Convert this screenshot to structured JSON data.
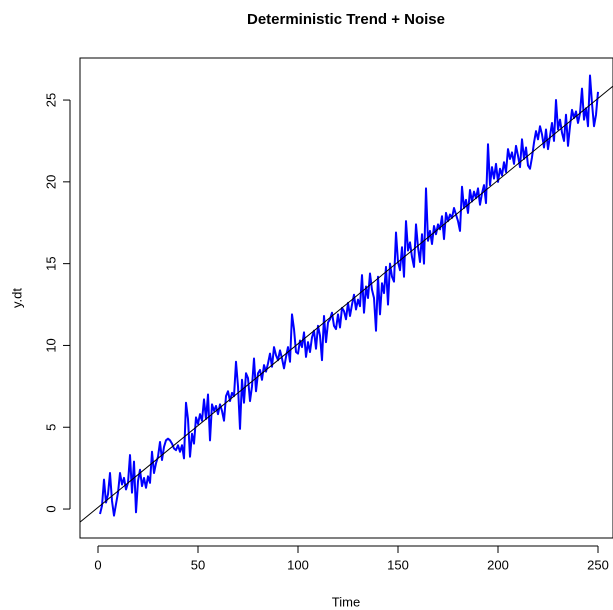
{
  "chart_data": {
    "type": "line",
    "title": "Deterministic Trend + Noise",
    "xlabel": "Time",
    "ylabel": "y.dt",
    "x": [
      1,
      2,
      3,
      4,
      5,
      6,
      7,
      8,
      9,
      10,
      11,
      12,
      13,
      14,
      15,
      16,
      17,
      18,
      19,
      20,
      21,
      22,
      23,
      24,
      25,
      26,
      27,
      28,
      29,
      30,
      31,
      32,
      33,
      34,
      35,
      36,
      37,
      38,
      39,
      40,
      41,
      42,
      43,
      44,
      45,
      46,
      47,
      48,
      49,
      50,
      51,
      52,
      53,
      54,
      55,
      56,
      57,
      58,
      59,
      60,
      61,
      62,
      63,
      64,
      65,
      66,
      67,
      68,
      69,
      70,
      71,
      72,
      73,
      74,
      75,
      76,
      77,
      78,
      79,
      80,
      81,
      82,
      83,
      84,
      85,
      86,
      87,
      88,
      89,
      90,
      91,
      92,
      93,
      94,
      95,
      96,
      97,
      98,
      99,
      100,
      101,
      102,
      103,
      104,
      105,
      106,
      107,
      108,
      109,
      110,
      111,
      112,
      113,
      114,
      115,
      116,
      117,
      118,
      119,
      120,
      121,
      122,
      123,
      124,
      125,
      126,
      127,
      128,
      129,
      130,
      131,
      132,
      133,
      134,
      135,
      136,
      137,
      138,
      139,
      140,
      141,
      142,
      143,
      144,
      145,
      146,
      147,
      148,
      149,
      150,
      151,
      152,
      153,
      154,
      155,
      156,
      157,
      158,
      159,
      160,
      161,
      162,
      163,
      164,
      165,
      166,
      167,
      168,
      169,
      170,
      171,
      172,
      173,
      174,
      175,
      176,
      177,
      178,
      179,
      180,
      181,
      182,
      183,
      184,
      185,
      186,
      187,
      188,
      189,
      190,
      191,
      192,
      193,
      194,
      195,
      196,
      197,
      198,
      199,
      200,
      201,
      202,
      203,
      204,
      205,
      206,
      207,
      208,
      209,
      210,
      211,
      212,
      213,
      214,
      215,
      216,
      217,
      218,
      219,
      220,
      221,
      222,
      223,
      224,
      225,
      226,
      227,
      228,
      229,
      230,
      231,
      232,
      233,
      234,
      235,
      236,
      237,
      238,
      239,
      240,
      241,
      242,
      243,
      244,
      245,
      246,
      247,
      248,
      249,
      250
    ],
    "values": [
      -0.3,
      0.2,
      1.8,
      0.4,
      0.9,
      2.2,
      0.5,
      -0.4,
      0.3,
      1.0,
      2.2,
      1.5,
      1.9,
      1.2,
      1.6,
      3.3,
      1.0,
      2.9,
      -0.2,
      1.7,
      2.4,
      1.4,
      1.9,
      1.3,
      2.0,
      1.6,
      3.5,
      2.2,
      2.8,
      3.2,
      4.1,
      3.0,
      3.8,
      4.2,
      4.3,
      4.2,
      4.0,
      3.7,
      3.6,
      3.9,
      3.5,
      3.9,
      3.1,
      6.5,
      5.5,
      3.2,
      4.6,
      4.0,
      5.6,
      5.2,
      5.8,
      5.4,
      6.7,
      5.5,
      7.0,
      4.2,
      6.4,
      6.0,
      6.3,
      5.8,
      6.4,
      6.0,
      5.4,
      6.9,
      7.2,
      6.6,
      7.1,
      6.9,
      9.0,
      7.5,
      4.9,
      7.9,
      6.5,
      8.3,
      8.0,
      6.6,
      7.5,
      9.2,
      7.2,
      8.3,
      8.5,
      7.9,
      8.8,
      8.4,
      8.9,
      9.5,
      8.7,
      9.9,
      9.4,
      9.1,
      9.7,
      9.2,
      8.6,
      9.3,
      9.9,
      9.0,
      11.9,
      11.0,
      9.6,
      9.5,
      10.3,
      9.9,
      10.8,
      9.3,
      10.2,
      9.6,
      10.5,
      10.9,
      9.8,
      11.2,
      10.6,
      9.1,
      11.8,
      10.2,
      11.4,
      11.6,
      12.0,
      11.2,
      11.0,
      11.9,
      11.1,
      12.3,
      12.1,
      11.6,
      12.6,
      11.8,
      12.5,
      13.1,
      12.2,
      12.8,
      12.4,
      14.3,
      12.0,
      13.6,
      12.9,
      14.4,
      13.4,
      12.9,
      10.9,
      14.2,
      11.9,
      13.8,
      13.2,
      14.8,
      12.5,
      15.0,
      14.2,
      13.9,
      16.9,
      15.1,
      14.6,
      16.0,
      14.2,
      17.6,
      15.8,
      16.3,
      15.4,
      14.8,
      17.4,
      16.0,
      15.1,
      16.8,
      15.0,
      19.6,
      16.4,
      17.0,
      16.2,
      17.3,
      16.8,
      17.4,
      17.1,
      17.9,
      16.5,
      18.1,
      17.6,
      18.0,
      17.8,
      18.4,
      18.0,
      17.6,
      17.0,
      19.7,
      18.4,
      18.9,
      18.1,
      19.5,
      18.8,
      19.4,
      19.0,
      19.6,
      18.6,
      19.3,
      19.8,
      18.7,
      22.3,
      19.8,
      20.9,
      20.2,
      21.1,
      20.0,
      20.8,
      20.4,
      21.2,
      20.6,
      22.0,
      21.4,
      21.8,
      21.1,
      22.2,
      21.6,
      20.9,
      22.6,
      21.4,
      22.1,
      21.0,
      20.8,
      21.5,
      22.4,
      23.1,
      22.6,
      23.4,
      22.9,
      22.1,
      23.2,
      22.0,
      22.8,
      23.6,
      22.5,
      25.0,
      23.2,
      23.8,
      23.0,
      22.5,
      24.1,
      22.2,
      23.4,
      24.4,
      23.9,
      24.3,
      23.6,
      24.2,
      25.7,
      23.8,
      24.5,
      23.4,
      26.5,
      24.8,
      23.4,
      24.1,
      25.5
    ],
    "color": "#0000ff",
    "trend_line": {
      "intercept": 0.1,
      "slope": 0.1,
      "color": "#000000"
    },
    "xlim": [
      -9,
      257.5
    ],
    "ylim": [
      -1.77,
      27.57
    ],
    "xticks": [
      0,
      50,
      100,
      150,
      200,
      250
    ],
    "yticks": [
      0,
      5,
      10,
      15,
      20,
      25
    ]
  }
}
